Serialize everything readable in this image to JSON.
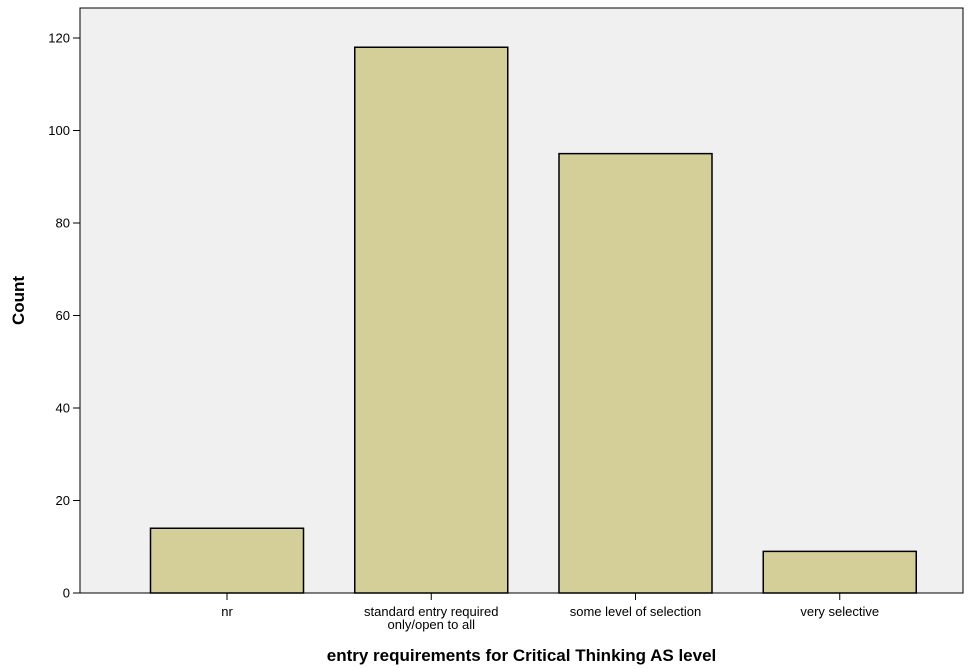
{
  "chart_data": {
    "type": "bar",
    "title": "",
    "xlabel": "entry requirements for Critical Thinking AS level",
    "ylabel": "Count",
    "categories": [
      [
        "nr"
      ],
      [
        "standard entry required",
        "only/open to all"
      ],
      [
        "some level of selection"
      ],
      [
        "very selective"
      ]
    ],
    "values": [
      14,
      118,
      95,
      9
    ],
    "ylim": [
      0,
      120
    ],
    "yticks": [
      0,
      20,
      40,
      60,
      80,
      100,
      120
    ],
    "ytick_labels": [
      "0",
      "20",
      "40",
      "60",
      "80",
      "100",
      "120"
    ],
    "grid": false,
    "legend": "none",
    "colors": {
      "plot_background": "#f0f0f0",
      "bar_fill": "#d4cf98",
      "bar_stroke": "#000000"
    }
  }
}
